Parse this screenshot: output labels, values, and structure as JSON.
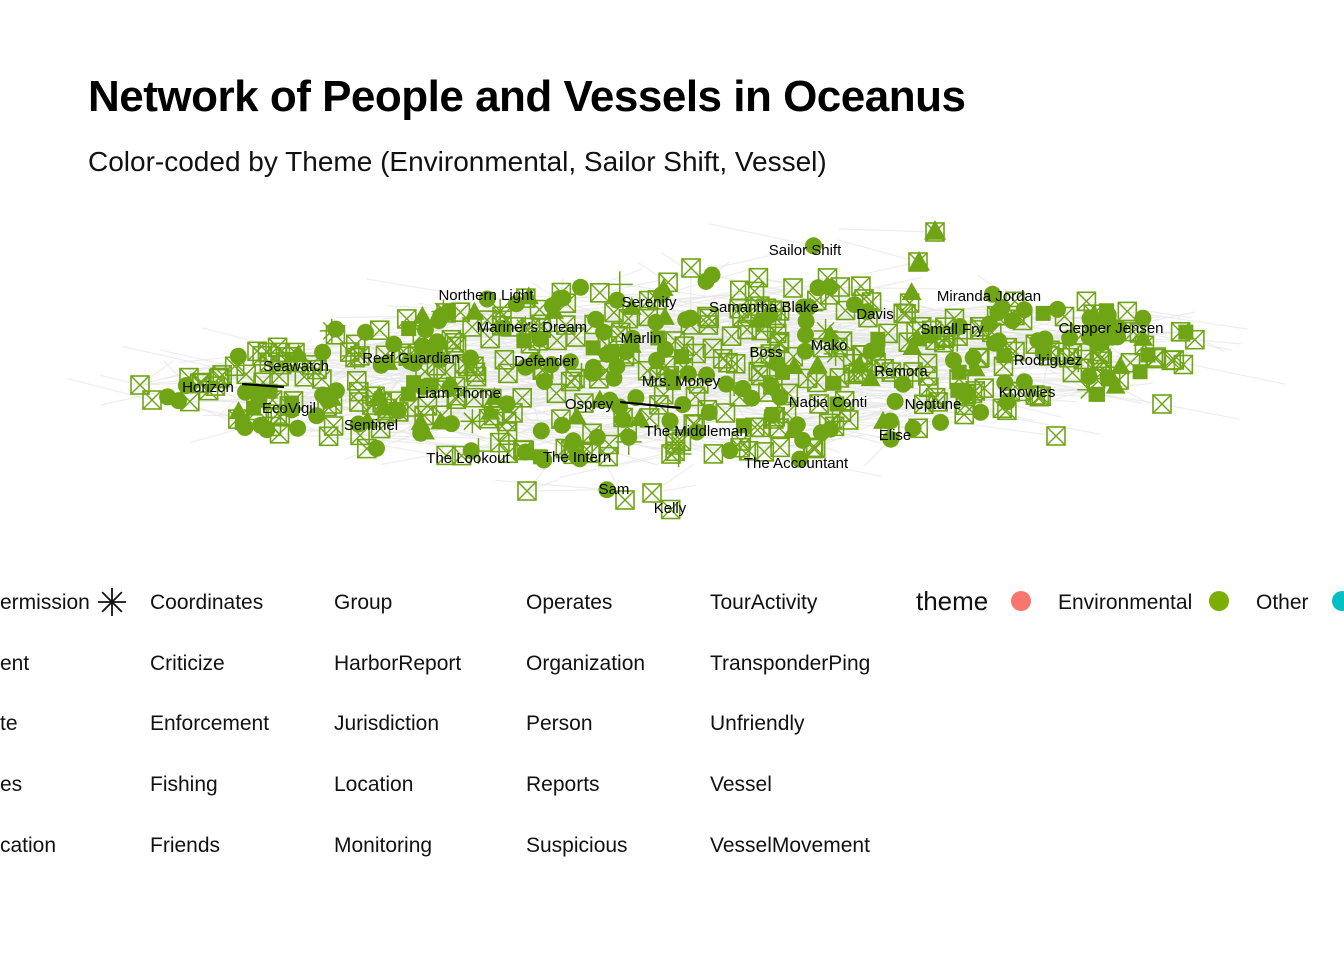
{
  "title": "Network of People and Vessels in Oceanus",
  "subtitle": "Color-coded by Theme (Environmental, Sailor Shift, Vessel)",
  "colors": {
    "node": "#6fa515",
    "edge": "#e6e6e6",
    "highlight_edge": "#000000"
  },
  "chart_data": {
    "type": "network",
    "node_labels": [
      "Sailor Shift",
      "Northern Light",
      "Serenity",
      "Samantha Blake",
      "Miranda Jordan",
      "Davis",
      "Mariner's Dream",
      "Marlin",
      "Small Fry",
      "Clepper Jensen",
      "Reef Guardian",
      "Defender",
      "Boss",
      "Mako",
      "Rodriguez",
      "Seawatch",
      "Horizon",
      "Liam Thorne",
      "Mrs. Money",
      "Remora",
      "Knowles",
      "EcoVigil",
      "Osprey",
      "Nadia Conti",
      "Neptune",
      "Sentinel",
      "The Middleman",
      "Elise",
      "The Lookout",
      "The Intern",
      "The Accountant",
      "Sam",
      "Kelly"
    ],
    "legend_shape": {
      "title": "",
      "items": [
        "ermission",
        "Coordinates",
        "Group",
        "Operates",
        "TourActivity",
        "ent",
        "Criticize",
        "HarborReport",
        "Organization",
        "TransponderPing",
        "te",
        "Enforcement",
        "Jurisdiction",
        "Person",
        "Unfriendly",
        "es",
        "Fishing",
        "Location",
        "Reports",
        "Vessel",
        "cation",
        "Friends",
        "Monitoring",
        "Suspicious",
        "VesselMovement"
      ],
      "icons": [
        "none",
        "asterisk-icon",
        "none",
        "none",
        "none",
        "none",
        "none",
        "none",
        "none",
        "none",
        "none",
        "none",
        "none",
        "none",
        "none",
        "none",
        "none",
        "none",
        "none",
        "none",
        "none",
        "none",
        "none",
        "none",
        "none"
      ]
    },
    "legend_theme": {
      "title": "theme",
      "items": [
        {
          "label": "Environmental",
          "color": "#f8766d"
        },
        {
          "label": "Other",
          "color": "#7cae00"
        },
        {
          "label": "",
          "color": "#00bfc4"
        }
      ]
    }
  }
}
